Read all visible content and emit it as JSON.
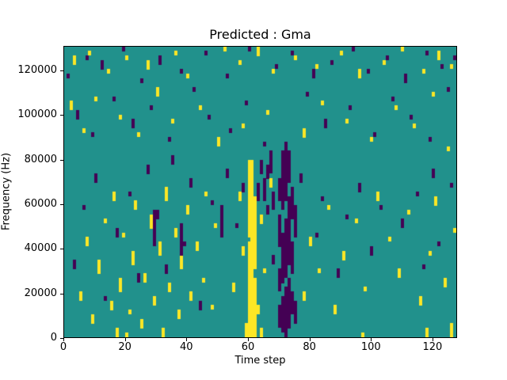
{
  "figure": {
    "title": "Predicted : Gma",
    "xlabel": "Time step",
    "ylabel": "Frequency (Hz)"
  },
  "chart_data": {
    "type": "heatmap",
    "title": "Predicted : Gma",
    "xlabel": "Time step",
    "ylabel": "Frequency (Hz)",
    "xlim": [
      0,
      128
    ],
    "ylim": [
      0,
      131072
    ],
    "x_ticks": [
      0,
      20,
      40,
      60,
      80,
      100,
      120
    ],
    "y_ticks": [
      0,
      20000,
      40000,
      60000,
      80000,
      100000,
      120000
    ],
    "grid": false,
    "legend": "none",
    "colormap": "viridis",
    "colors": {
      "background": "#21918c",
      "high": "#fde725",
      "low": "#440154"
    },
    "grid_shape": {
      "time_steps": 128,
      "freq_bins": 64,
      "freq_bin_hz": 2048
    },
    "cells_encoding": "runs are [time_step, freq_bin_start, freq_bin_end] inclusive, estimated from figure",
    "yellow_runs": [
      [
        59,
        0,
        2
      ],
      [
        60,
        0,
        20
      ],
      [
        60,
        22,
        38
      ],
      [
        61,
        0,
        38
      ],
      [
        62,
        0,
        12
      ],
      [
        62,
        15,
        30
      ],
      [
        3,
        60,
        61
      ],
      [
        8,
        62,
        62
      ],
      [
        14,
        58,
        58
      ],
      [
        20,
        61,
        61
      ],
      [
        27,
        59,
        60
      ],
      [
        36,
        62,
        62
      ],
      [
        40,
        57,
        57
      ],
      [
        52,
        63,
        63
      ],
      [
        57,
        60,
        60
      ],
      [
        63,
        62,
        63
      ],
      [
        68,
        58,
        58
      ],
      [
        75,
        61,
        61
      ],
      [
        82,
        59,
        59
      ],
      [
        90,
        62,
        62
      ],
      [
        96,
        57,
        58
      ],
      [
        104,
        60,
        60
      ],
      [
        110,
        63,
        63
      ],
      [
        117,
        58,
        58
      ],
      [
        122,
        61,
        62
      ],
      [
        126,
        59,
        59
      ],
      [
        2,
        50,
        51
      ],
      [
        6,
        45,
        45
      ],
      [
        10,
        52,
        52
      ],
      [
        18,
        48,
        48
      ],
      [
        24,
        44,
        44
      ],
      [
        30,
        53,
        54
      ],
      [
        35,
        47,
        47
      ],
      [
        44,
        50,
        50
      ],
      [
        50,
        42,
        43
      ],
      [
        58,
        46,
        46
      ],
      [
        66,
        49,
        49
      ],
      [
        78,
        44,
        45
      ],
      [
        84,
        51,
        51
      ],
      [
        92,
        47,
        47
      ],
      [
        100,
        43,
        43
      ],
      [
        108,
        50,
        50
      ],
      [
        114,
        46,
        46
      ],
      [
        120,
        53,
        53
      ],
      [
        125,
        41,
        41
      ],
      [
        5,
        8,
        9
      ],
      [
        7,
        20,
        21
      ],
      [
        9,
        3,
        4
      ],
      [
        11,
        14,
        16
      ],
      [
        13,
        25,
        25
      ],
      [
        15,
        6,
        7
      ],
      [
        16,
        30,
        31
      ],
      [
        18,
        10,
        12
      ],
      [
        19,
        22,
        22
      ],
      [
        21,
        5,
        5
      ],
      [
        22,
        16,
        18
      ],
      [
        23,
        28,
        29
      ],
      [
        25,
        2,
        3
      ],
      [
        26,
        12,
        13
      ],
      [
        28,
        24,
        26
      ],
      [
        29,
        7,
        8
      ],
      [
        31,
        18,
        20
      ],
      [
        32,
        0,
        1
      ],
      [
        33,
        30,
        32
      ],
      [
        34,
        10,
        11
      ],
      [
        36,
        22,
        23
      ],
      [
        37,
        4,
        5
      ],
      [
        38,
        15,
        17
      ],
      [
        40,
        27,
        28
      ],
      [
        41,
        8,
        9
      ],
      [
        43,
        19,
        20
      ],
      [
        45,
        12,
        12
      ],
      [
        46,
        31,
        31
      ],
      [
        48,
        6,
        6
      ],
      [
        49,
        24,
        24
      ],
      [
        55,
        10,
        11
      ],
      [
        57,
        30,
        31
      ],
      [
        58,
        18,
        19
      ],
      [
        63,
        5,
        6
      ],
      [
        64,
        25,
        26
      ],
      [
        65,
        14,
        14
      ],
      [
        67,
        33,
        34
      ],
      [
        78,
        8,
        9
      ],
      [
        80,
        20,
        21
      ],
      [
        83,
        14,
        14
      ],
      [
        86,
        28,
        28
      ],
      [
        88,
        5,
        6
      ],
      [
        91,
        17,
        18
      ],
      [
        95,
        25,
        25
      ],
      [
        98,
        10,
        10
      ],
      [
        102,
        30,
        31
      ],
      [
        106,
        21,
        21
      ],
      [
        109,
        13,
        14
      ],
      [
        112,
        27,
        27
      ],
      [
        116,
        7,
        8
      ],
      [
        119,
        18,
        18
      ],
      [
        121,
        29,
        30
      ],
      [
        124,
        11,
        12
      ],
      [
        127,
        23,
        23
      ],
      [
        17,
        0,
        1
      ],
      [
        20,
        0,
        0
      ],
      [
        64,
        0,
        1
      ],
      [
        97,
        0,
        0
      ],
      [
        118,
        0,
        1
      ],
      [
        126,
        0,
        2
      ]
    ],
    "purple_runs": [
      [
        70,
        2,
        6
      ],
      [
        70,
        10,
        14
      ],
      [
        70,
        20,
        26
      ],
      [
        70,
        30,
        34
      ],
      [
        71,
        1,
        8
      ],
      [
        71,
        12,
        22
      ],
      [
        71,
        28,
        40
      ],
      [
        72,
        0,
        10
      ],
      [
        72,
        13,
        25
      ],
      [
        72,
        30,
        42
      ],
      [
        73,
        2,
        12
      ],
      [
        73,
        16,
        30
      ],
      [
        73,
        34,
        40
      ],
      [
        74,
        5,
        9
      ],
      [
        74,
        14,
        20
      ],
      [
        74,
        26,
        32
      ],
      [
        75,
        3,
        7
      ],
      [
        75,
        22,
        28
      ],
      [
        63,
        30,
        33
      ],
      [
        64,
        36,
        38
      ],
      [
        65,
        30,
        34
      ],
      [
        66,
        35,
        37
      ],
      [
        67,
        36,
        40
      ],
      [
        68,
        28,
        31
      ],
      [
        29,
        20,
        27
      ],
      [
        38,
        18,
        24
      ],
      [
        51,
        22,
        28
      ],
      [
        1,
        57,
        57
      ],
      [
        7,
        61,
        61
      ],
      [
        12,
        59,
        60
      ],
      [
        19,
        63,
        63
      ],
      [
        25,
        56,
        56
      ],
      [
        31,
        60,
        61
      ],
      [
        38,
        58,
        58
      ],
      [
        46,
        62,
        62
      ],
      [
        53,
        57,
        57
      ],
      [
        60,
        63,
        63
      ],
      [
        69,
        59,
        59
      ],
      [
        74,
        62,
        62
      ],
      [
        81,
        57,
        58
      ],
      [
        87,
        60,
        60
      ],
      [
        94,
        63,
        63
      ],
      [
        99,
        58,
        58
      ],
      [
        105,
        61,
        61
      ],
      [
        111,
        56,
        57
      ],
      [
        118,
        62,
        62
      ],
      [
        123,
        59,
        59
      ],
      [
        127,
        61,
        61
      ],
      [
        4,
        48,
        49
      ],
      [
        9,
        44,
        44
      ],
      [
        16,
        52,
        52
      ],
      [
        22,
        46,
        47
      ],
      [
        28,
        50,
        50
      ],
      [
        34,
        43,
        43
      ],
      [
        42,
        54,
        54
      ],
      [
        47,
        48,
        48
      ],
      [
        54,
        45,
        45
      ],
      [
        59,
        51,
        51
      ],
      [
        65,
        42,
        42
      ],
      [
        79,
        53,
        53
      ],
      [
        85,
        46,
        47
      ],
      [
        93,
        50,
        50
      ],
      [
        101,
        44,
        44
      ],
      [
        107,
        52,
        52
      ],
      [
        113,
        48,
        48
      ],
      [
        119,
        43,
        43
      ],
      [
        125,
        54,
        54
      ],
      [
        3,
        15,
        16
      ],
      [
        6,
        28,
        28
      ],
      [
        10,
        34,
        35
      ],
      [
        13,
        8,
        8
      ],
      [
        17,
        22,
        23
      ],
      [
        21,
        31,
        31
      ],
      [
        24,
        12,
        13
      ],
      [
        27,
        36,
        37
      ],
      [
        30,
        26,
        27
      ],
      [
        33,
        14,
        15
      ],
      [
        35,
        38,
        39
      ],
      [
        39,
        20,
        20
      ],
      [
        41,
        33,
        34
      ],
      [
        44,
        6,
        7
      ],
      [
        48,
        29,
        29
      ],
      [
        53,
        35,
        36
      ],
      [
        56,
        24,
        24
      ],
      [
        58,
        32,
        33
      ],
      [
        66,
        27,
        28
      ],
      [
        68,
        16,
        17
      ],
      [
        77,
        34,
        35
      ],
      [
        82,
        22,
        22
      ],
      [
        84,
        30,
        30
      ],
      [
        89,
        13,
        14
      ],
      [
        92,
        26,
        26
      ],
      [
        96,
        32,
        33
      ],
      [
        100,
        18,
        19
      ],
      [
        103,
        28,
        28
      ],
      [
        110,
        24,
        25
      ],
      [
        115,
        31,
        31
      ],
      [
        117,
        15,
        15
      ],
      [
        120,
        35,
        36
      ],
      [
        122,
        20,
        20
      ],
      [
        126,
        33,
        33
      ]
    ]
  }
}
